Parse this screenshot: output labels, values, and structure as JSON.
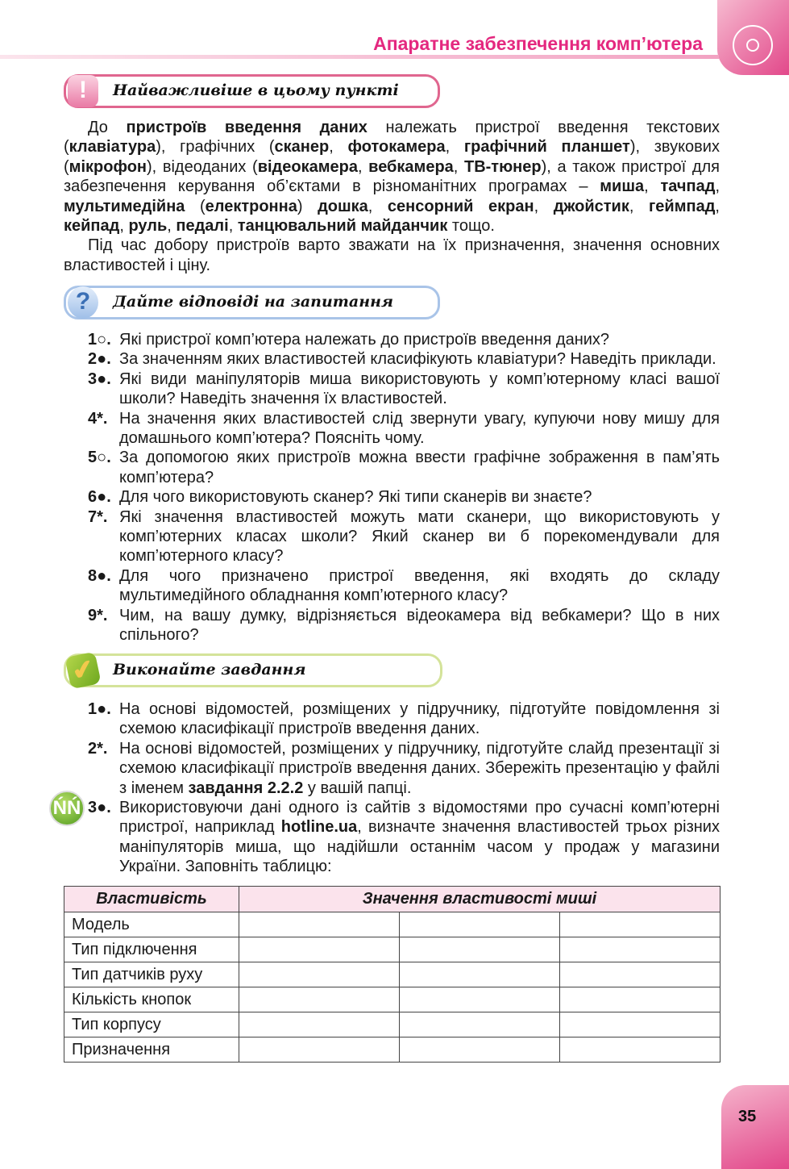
{
  "header": {
    "title": "Апаратне забезпечення комп’ютера",
    "icon": "disk-icon"
  },
  "section_important": {
    "title": "Найважливіше в цьому пункті",
    "icon": "exclamation-icon",
    "color": "#e0668f"
  },
  "intro": [
    [
      {
        "t": "До "
      },
      {
        "t": "пристроїв введення даних",
        "b": 1
      },
      {
        "t": " належать пристрої введення текстових ("
      },
      {
        "t": "клавіатура",
        "b": 1
      },
      {
        "t": "), графічних ("
      },
      {
        "t": "сканер",
        "b": 1
      },
      {
        "t": ", "
      },
      {
        "t": "фотокамера",
        "b": 1
      },
      {
        "t": ", "
      },
      {
        "t": "графічний планшет",
        "b": 1
      },
      {
        "t": "), звукових ("
      },
      {
        "t": "мікрофон",
        "b": 1
      },
      {
        "t": "), відеоданих ("
      },
      {
        "t": "відеокамера",
        "b": 1
      },
      {
        "t": ", "
      },
      {
        "t": "вебкамера",
        "b": 1
      },
      {
        "t": ", "
      },
      {
        "t": "ТВ-тюнер",
        "b": 1
      },
      {
        "t": "), а також пристрої для забезпечення керування об’єктами в різноманітних програмах – "
      },
      {
        "t": "миша",
        "b": 1
      },
      {
        "t": ", "
      },
      {
        "t": "тачпад",
        "b": 1
      },
      {
        "t": ", "
      },
      {
        "t": "мультимедійна",
        "b": 1
      },
      {
        "t": " ("
      },
      {
        "t": "електронна",
        "b": 1
      },
      {
        "t": ") "
      },
      {
        "t": "дошка",
        "b": 1
      },
      {
        "t": ", "
      },
      {
        "t": "сенсорний екран",
        "b": 1
      },
      {
        "t": ", "
      },
      {
        "t": "джойстик",
        "b": 1
      },
      {
        "t": ", "
      },
      {
        "t": "геймпад",
        "b": 1
      },
      {
        "t": ", "
      },
      {
        "t": "кейпад",
        "b": 1
      },
      {
        "t": ", "
      },
      {
        "t": "руль",
        "b": 1
      },
      {
        "t": ", "
      },
      {
        "t": "педалі",
        "b": 1
      },
      {
        "t": ", "
      },
      {
        "t": "танцювальний майданчик",
        "b": 1
      },
      {
        "t": " тощо."
      }
    ],
    [
      {
        "t": "Під час добору пристроїв варто зважати на їх призначення, значення основних властивостей і ціну."
      }
    ]
  ],
  "section_questions": {
    "title": "Дайте відповіді на запитання",
    "icon": "question-icon",
    "color": "#a9c4e8"
  },
  "questions": [
    {
      "n": "1○.",
      "segs": [
        {
          "t": "Які пристрої комп’ютера належать до пристроїв введення даних?"
        }
      ]
    },
    {
      "n": "2●.",
      "segs": [
        {
          "t": "За значенням яких властивостей класифікують клавіатури? Наведіть приклади."
        }
      ]
    },
    {
      "n": "3●.",
      "segs": [
        {
          "t": "Які види маніпуляторів миша використовують у комп’ютерному класі вашої школи? Наведіть значення їх властивостей."
        }
      ]
    },
    {
      "n": "4*.",
      "segs": [
        {
          "t": "На значення яких властивостей слід звернути увагу, купуючи нову мишу для домашнього комп’ютера? Поясніть чому."
        }
      ]
    },
    {
      "n": "5○.",
      "segs": [
        {
          "t": "За допомогою яких пристроїв можна ввести графічне зображення в пам’ять комп’ютера?"
        }
      ]
    },
    {
      "n": "6●.",
      "segs": [
        {
          "t": "Для чого використовують сканер? Які типи сканерів ви знаєте?"
        }
      ]
    },
    {
      "n": "7*.",
      "segs": [
        {
          "t": "Які значення властивостей можуть мати сканери, що використовують у комп’ютерних класах школи? Який сканер ви б порекомендували для комп’ютерного класу?"
        }
      ]
    },
    {
      "n": "8●.",
      "segs": [
        {
          "t": "Для чого призначено пристрої введення, які входять до складу мультимедійного обладнання комп’ютерного класу?"
        }
      ]
    },
    {
      "n": "9*.",
      "segs": [
        {
          "t": "Чим, на вашу думку, відрізняється відеокамера від вебкамери? Що в них спільного?"
        }
      ]
    }
  ],
  "section_tasks": {
    "title": "Виконайте завдання",
    "icon": "checkmark-icon",
    "color": "#d4e39a"
  },
  "tasks": [
    {
      "n": "1●.",
      "segs": [
        {
          "t": "На основі відомостей, розміщених у підручнику, підготуйте повідомлення зі схемою класифікації пристроїв введення даних."
        }
      ]
    },
    {
      "n": "2*.",
      "segs": [
        {
          "t": "На основі відомостей, розміщених у підручнику, підготуйте слайд презентації зі схемою класифікації пристроїв введення даних. Збережіть презентацію у файлі з іменем "
        },
        {
          "t": "завдання 2.2.2",
          "b": 1
        },
        {
          "t": " у вашій папці."
        }
      ]
    },
    {
      "n": "3●.",
      "icon": "teamwork-icon",
      "segs": [
        {
          "t": "Використовуючи дані одного із сайтів з відомостями про сучасні комп’ютерні пристрої, наприклад "
        },
        {
          "t": "hotline.ua",
          "b": 1
        },
        {
          "t": ", визначте значення властивостей трьох різних маніпуляторів миша, що надійшли останнім часом у продаж у магазини України. Заповніть таблицю:"
        }
      ]
    }
  ],
  "table": {
    "headers": [
      "Властивість",
      "Значення властивості миші"
    ],
    "rows": [
      "Модель",
      "Тип підключення",
      "Тип датчиків руху",
      "Кількість кнопок",
      "Тип корпусу",
      "Призначення"
    ]
  },
  "page_number": "35"
}
